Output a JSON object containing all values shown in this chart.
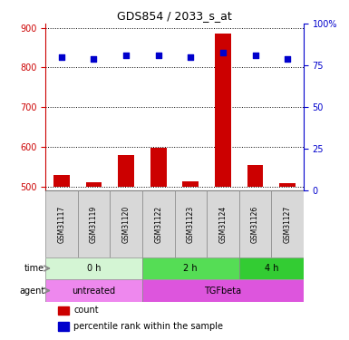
{
  "title": "GDS854 / 2033_s_at",
  "samples": [
    "GSM31117",
    "GSM31119",
    "GSM31120",
    "GSM31122",
    "GSM31123",
    "GSM31124",
    "GSM31126",
    "GSM31127"
  ],
  "counts": [
    530,
    510,
    580,
    598,
    513,
    885,
    555,
    508
  ],
  "percentiles": [
    80,
    79,
    81,
    81,
    80,
    83,
    81,
    79
  ],
  "ylim_left": [
    490,
    910
  ],
  "ylim_right": [
    0,
    100
  ],
  "yticks_left": [
    500,
    600,
    700,
    800,
    900
  ],
  "yticks_right": [
    0,
    25,
    50,
    75,
    100
  ],
  "bar_color": "#cc0000",
  "dot_color": "#0000cc",
  "xlabel_color": "#cc0000",
  "bar_base": 500,
  "time_groups": [
    {
      "label": "0 h",
      "start": 0,
      "end": 3,
      "color": "#d4f5d4"
    },
    {
      "label": "2 h",
      "start": 3,
      "end": 6,
      "color": "#55dd55"
    },
    {
      "label": "4 h",
      "start": 6,
      "end": 8,
      "color": "#33cc33"
    }
  ],
  "agent_groups": [
    {
      "label": "untreated",
      "start": 0,
      "end": 3,
      "color": "#ee88ee"
    },
    {
      "label": "TGFbeta",
      "start": 3,
      "end": 8,
      "color": "#dd55dd"
    }
  ]
}
